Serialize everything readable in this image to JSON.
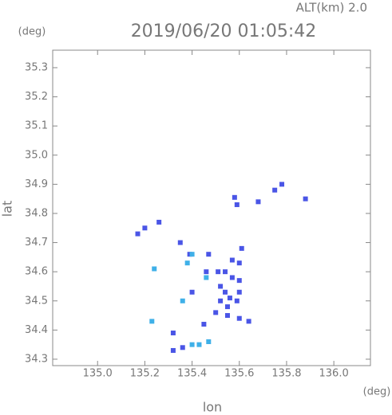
{
  "chart_data": {
    "type": "scatter",
    "header": "ALT(km) 2.0",
    "y_unit": "(deg)",
    "title": "2019/06/20 01:05:42",
    "ylabel": "lat",
    "xlabel": "lon",
    "x_unit": "(deg)",
    "xlim": [
      134.81,
      136.155
    ],
    "ylim": [
      34.278,
      35.36
    ],
    "xticks": [
      {
        "value": 135,
        "label": "135.0"
      },
      135.2,
      135.4,
      135.6,
      135.8,
      {
        "value": 136,
        "label": "136.0"
      }
    ],
    "yticks": [
      34.3,
      34.4,
      34.5,
      34.6,
      34.7,
      34.8,
      34.9,
      {
        "value": 35,
        "label": "35.0"
      },
      35.1,
      35.2,
      35.3
    ],
    "series": [
      {
        "color": "#4a55e6",
        "x": [
          135.17,
          135.2,
          135.26,
          135.58,
          135.59,
          135.68,
          135.75,
          135.78,
          135.88,
          135.35,
          135.39,
          135.47,
          135.61,
          135.57,
          135.6,
          135.46,
          135.51,
          135.54,
          135.57,
          135.6,
          135.52,
          135.54,
          135.56,
          135.52,
          135.59,
          135.55,
          135.5,
          135.6,
          135.55,
          135.64,
          135.45,
          135.32,
          135.32,
          135.36,
          135.4,
          135.6
        ],
        "values": [
          34.73,
          34.75,
          34.77,
          34.855,
          34.83,
          34.84,
          34.88,
          34.9,
          34.85,
          34.7,
          34.66,
          34.66,
          34.68,
          34.64,
          34.63,
          34.6,
          34.6,
          34.6,
          34.58,
          34.57,
          34.55,
          34.53,
          34.51,
          34.5,
          34.5,
          34.48,
          34.46,
          34.44,
          34.45,
          34.43,
          34.42,
          34.39,
          34.33,
          34.34,
          34.53,
          34.53
        ]
      },
      {
        "color": "#3fb0e8",
        "x": [
          135.24,
          135.23,
          135.36,
          135.46,
          135.4,
          135.43,
          135.47,
          135.38,
          135.4
        ],
        "values": [
          34.61,
          34.43,
          34.5,
          34.58,
          34.35,
          34.35,
          34.36,
          34.63,
          34.66
        ]
      }
    ]
  }
}
